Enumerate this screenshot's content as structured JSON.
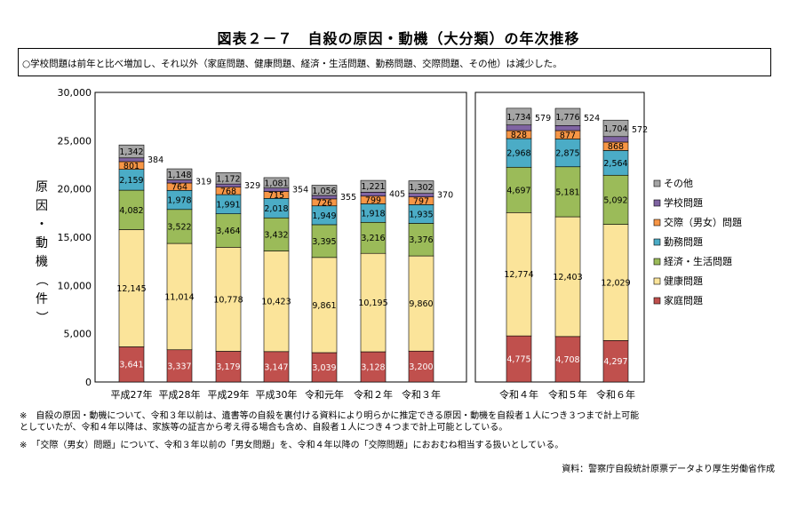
{
  "title": "図表２－７　自殺の原因・動機（大分類）の年次推移",
  "summary": "○学校問題は前年と比べ増加し、それ以外（家庭問題、健康問題、経済・生活問題、勤務問題、交際問題、その他）は減少した。",
  "notes": {
    "note1_line1": "※　自殺の原因・動機について、令和３年以前は、遺書等の自殺を裏付ける資料により明らかに推定できる原因・動機を自殺者１人につき３つまで計上可能",
    "note1_line2": "としていたが、令和４年以降は、家族等の証言から考え得る場合も含め、自殺者１人につき４つまで計上可能としている。",
    "note2": "※　「交際（男女）問題」について、令和３年以前の「男女問題」を、令和４年以降の「交際問題」におおむね相当する扱いとしている。"
  },
  "source": "資料：警察庁自殺統計原票データより厚生労働省作成",
  "chart_data": {
    "type": "bar",
    "stacked": true,
    "ylabel": "原因・動機（件）",
    "ylim": [
      0,
      30000
    ],
    "y_ticks": [
      "0",
      "5,000",
      "10,000",
      "15,000",
      "20,000",
      "25,000",
      "30,000"
    ],
    "panels": [
      {
        "categories": [
          "平成27年",
          "平成28年",
          "平成29年",
          "平成30年",
          "令和元年",
          "令和２年",
          "令和３年"
        ]
      },
      {
        "categories": [
          "令和４年",
          "令和５年",
          "令和６年"
        ]
      }
    ],
    "categories": [
      "平成27年",
      "平成28年",
      "平成29年",
      "平成30年",
      "令和元年",
      "令和２年",
      "令和３年",
      "令和４年",
      "令和５年",
      "令和６年"
    ],
    "series": [
      {
        "name": "家庭問題",
        "color": "#c0504d",
        "values": [
          3641,
          3337,
          3179,
          3147,
          3039,
          3128,
          3200,
          4775,
          4708,
          4297
        ],
        "labels": [
          "3,641",
          "3,337",
          "3,179",
          "3,147",
          "3,039",
          "3,128",
          "3,200",
          "4,775",
          "4,708",
          "4,297"
        ]
      },
      {
        "name": "健康問題",
        "color": "#fbe49a",
        "values": [
          12145,
          11014,
          10778,
          10423,
          9861,
          10195,
          9860,
          12774,
          12403,
          12029
        ],
        "labels": [
          "12,145",
          "11,014",
          "10,778",
          "10,423",
          "9,861",
          "10,195",
          "9,860",
          "12,774",
          "12,403",
          "12,029"
        ]
      },
      {
        "name": "経済・生活問題",
        "color": "#9bbb59",
        "values": [
          4082,
          3522,
          3464,
          3432,
          3395,
          3216,
          3376,
          4697,
          5181,
          5092
        ],
        "labels": [
          "4,082",
          "3,522",
          "3,464",
          "3,432",
          "3,395",
          "3,216",
          "3,376",
          "4,697",
          "5,181",
          "5,092"
        ]
      },
      {
        "name": "勤務問題",
        "color": "#4bacc6",
        "values": [
          2159,
          1978,
          1991,
          2018,
          1949,
          1918,
          1935,
          2968,
          2875,
          2564
        ],
        "labels": [
          "2,159",
          "1,978",
          "1,991",
          "2,018",
          "1,949",
          "1,918",
          "1,935",
          "2,968",
          "2,875",
          "2,564"
        ]
      },
      {
        "name": "交際（男女）問題",
        "color": "#f79646",
        "values": [
          801,
          764,
          768,
          715,
          726,
          799,
          797,
          828,
          877,
          868
        ],
        "labels": [
          "801",
          "764",
          "768",
          "715",
          "726",
          "799",
          "797",
          "828",
          "877",
          "868"
        ]
      },
      {
        "name": "学校問題",
        "color": "#8064a2",
        "values": [
          384,
          319,
          329,
          354,
          355,
          405,
          370,
          579,
          524,
          572
        ],
        "labels": [
          "384",
          "319",
          "329",
          "354",
          "355",
          "405",
          "370",
          "579",
          "524",
          "572"
        ]
      },
      {
        "name": "その他",
        "color": "#a5a5a5",
        "values": [
          1342,
          1148,
          1172,
          1081,
          1056,
          1221,
          1302,
          1734,
          1776,
          1704
        ],
        "labels": [
          "1,342",
          "1,148",
          "1,172",
          "1,081",
          "1,056",
          "1,221",
          "1,302",
          "1,734",
          "1,776",
          "1,704"
        ]
      }
    ],
    "legend_order": [
      "その他",
      "学校問題",
      "交際（男女）問題",
      "勤務問題",
      "経済・生活問題",
      "健康問題",
      "家庭問題"
    ],
    "legend_position": "right",
    "grid": false
  }
}
